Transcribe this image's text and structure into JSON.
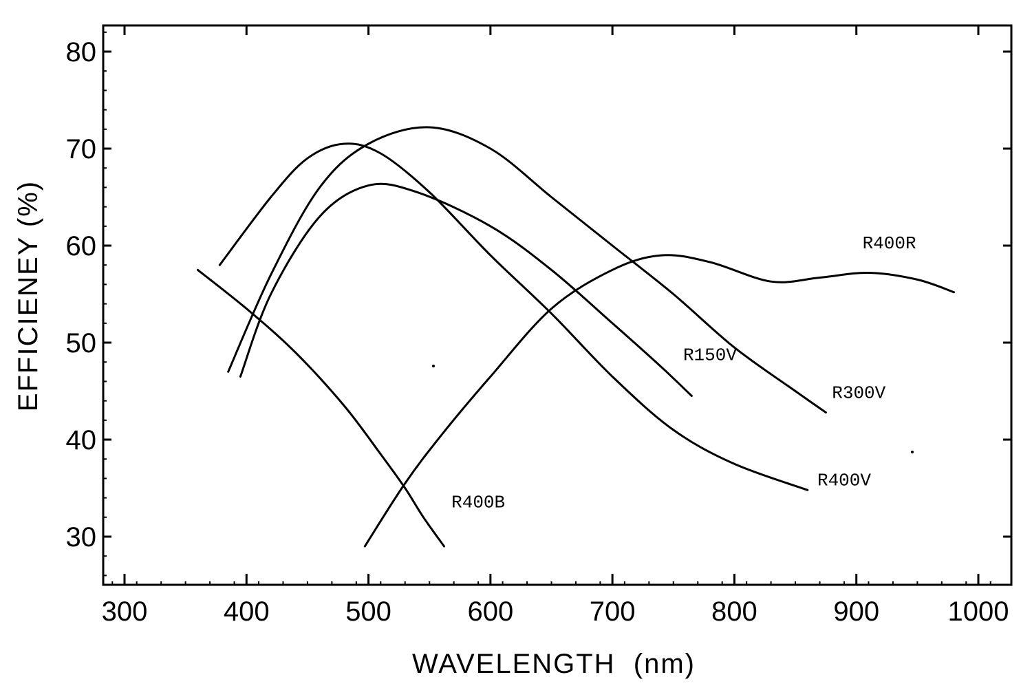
{
  "chart_data": {
    "type": "line",
    "title": "",
    "xlabel": "WAVELENGTH  (nm)",
    "ylabel": "EFFICIENEY (%)",
    "xlim": [
      280,
      1025
    ],
    "ylim": [
      25,
      82.5
    ],
    "xticks": [
      300,
      400,
      500,
      600,
      700,
      800,
      900,
      1000
    ],
    "xtick_labels": [
      "300",
      "400",
      "500",
      "600",
      "700",
      "800",
      "900",
      "1000"
    ],
    "yticks": [
      30,
      40,
      50,
      60,
      70,
      80
    ],
    "ytick_labels": [
      "30",
      "40",
      "50",
      "60",
      "70",
      "80"
    ],
    "grid": false,
    "legend": "inline labels at curve ends",
    "series": [
      {
        "name": "R400B",
        "label": "R400B",
        "x": [
          360,
          400,
          440,
          480,
          510,
          530,
          545,
          562
        ],
        "y": [
          57.5,
          53.5,
          49,
          43.5,
          38.5,
          35,
          32,
          29
        ]
      },
      {
        "name": "R400R",
        "label": "R400R",
        "x": [
          497,
          530,
          560,
          600,
          650,
          700,
          740,
          780,
          830,
          870,
          910,
          950,
          980
        ],
        "y": [
          29,
          35.5,
          40.5,
          46.5,
          53.5,
          57.5,
          59,
          58.3,
          56.3,
          56.7,
          57.2,
          56.5,
          55.2
        ]
      },
      {
        "name": "R400V",
        "label": "R400V",
        "x": [
          378,
          420,
          450,
          480,
          510,
          550,
          600,
          650,
          700,
          750,
          800,
          860
        ],
        "y": [
          58,
          65,
          69,
          70.5,
          69.5,
          65.5,
          59,
          53,
          46.5,
          41,
          37.5,
          34.8
        ]
      },
      {
        "name": "R300V",
        "label": "R300V",
        "x": [
          385,
          420,
          460,
          500,
          550,
          600,
          650,
          700,
          750,
          800,
          850,
          875
        ],
        "y": [
          47,
          57,
          66,
          70.5,
          72.2,
          70,
          65,
          60,
          55,
          49.5,
          45,
          42.8
        ]
      },
      {
        "name": "R150V",
        "label": "R150V",
        "x": [
          395,
          420,
          460,
          500,
          540,
          600,
          650,
          700,
          740,
          765
        ],
        "y": [
          46.5,
          55,
          63,
          66.2,
          65.5,
          62,
          57.5,
          52,
          47.5,
          44.5
        ]
      }
    ],
    "annotations": [
      {
        "text": "R400B",
        "x": 568,
        "y": 33
      },
      {
        "text": "R400R",
        "x": 905,
        "y": 59.7
      },
      {
        "text": "R400V",
        "x": 868,
        "y": 35.3
      },
      {
        "text": "R300V",
        "x": 880,
        "y": 44.3
      },
      {
        "text": "R150V",
        "x": 758,
        "y": 48.2
      }
    ],
    "colors": {
      "line": "#000000",
      "background": "#ffffff"
    }
  }
}
